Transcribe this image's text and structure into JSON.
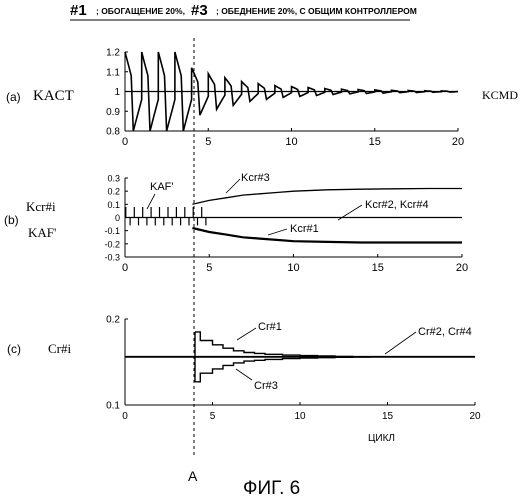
{
  "header": {
    "tag1": "#1",
    "text1": "; ОБОГАЩЕНИЕ 20%,",
    "tag2": "#3",
    "text2": "; ОБЕДНЕНИЕ 20%, С ОБЩИМ КОНТРОЛЛЕРОМ"
  },
  "figure_label": "ФИГ. 6",
  "marker": "A",
  "chart_data": [
    {
      "type": "line",
      "panel": "(a)",
      "ylabel": "KACT",
      "series": [
        {
          "name": "KACT",
          "label": "",
          "style": "heavy-oscillation",
          "amplitude": [
            0.2,
            0.2,
            0.2,
            0.2,
            0.12,
            0.09,
            0.07,
            0.05,
            0.04,
            0.03,
            0.025,
            0.02,
            0.015,
            0.012,
            0.01,
            0.008,
            0.006,
            0.005,
            0.004,
            0.003,
            0.002
          ]
        },
        {
          "name": "KCMD",
          "label": "KCMD",
          "value": 1.0
        }
      ],
      "xlim": [
        0,
        20
      ],
      "ylim": [
        0.8,
        1.2
      ],
      "xticks": [
        "0",
        "5",
        "10",
        "15",
        "20"
      ],
      "yticks": [
        "0.8",
        "0.9",
        "1",
        "1.1",
        "1.2"
      ]
    },
    {
      "type": "line",
      "panel": "(b)",
      "ylabel": "Kcr#i",
      "ylabel2": "KAF'",
      "series": [
        {
          "name": "KAF'",
          "label": "KAF'",
          "spike_cycles": [
            0,
            1,
            2,
            3,
            4
          ]
        },
        {
          "name": "Kcr#3",
          "label": "Kcr#3",
          "x": [
            4,
            5,
            6,
            7,
            8,
            9,
            10,
            12,
            14,
            16,
            18,
            20
          ],
          "y": [
            0.1,
            0.13,
            0.15,
            0.17,
            0.18,
            0.19,
            0.2,
            0.21,
            0.215,
            0.218,
            0.22,
            0.22
          ]
        },
        {
          "name": "Kcr#2, Kcr#4",
          "label": "Kcr#2, Kcr#4",
          "value": 0
        },
        {
          "name": "Kcr#1",
          "label": "Kcr#1",
          "x": [
            4,
            5,
            6,
            7,
            8,
            9,
            10,
            12,
            14,
            16,
            18,
            20
          ],
          "y": [
            -0.08,
            -0.11,
            -0.13,
            -0.15,
            -0.16,
            -0.17,
            -0.18,
            -0.185,
            -0.19,
            -0.19,
            -0.19,
            -0.19
          ]
        }
      ],
      "xlim": [
        0,
        20
      ],
      "ylim": [
        -0.3,
        0.3
      ],
      "xticks": [
        "0",
        "5",
        "10",
        "15",
        "20"
      ],
      "yticks": [
        "0.3",
        "0.2",
        "0.1",
        "0",
        "-0.1",
        "-0.2",
        "-0.3"
      ]
    },
    {
      "type": "line",
      "panel": "(c)",
      "ylabel": "Cr#i",
      "xlabel": "ЦИКЛ",
      "series": [
        {
          "name": "Cr#1",
          "label": "Cr#1",
          "x": [
            4,
            4.3,
            5,
            5.6,
            6.2,
            6.8,
            7.4,
            8,
            9,
            10,
            11,
            12,
            13,
            14
          ],
          "y": [
            0.185,
            0.175,
            0.17,
            0.166,
            0.163,
            0.161,
            0.16,
            0.159,
            0.158,
            0.1575,
            0.157,
            0.1565,
            0.1562,
            0.156
          ]
        },
        {
          "name": "Cr#2, Cr#4",
          "label": "Cr#2, Cr#4",
          "value": 0.156
        },
        {
          "name": "Cr#3",
          "label": "Cr#3",
          "x": [
            4,
            4.3,
            5,
            5.6,
            6.2,
            6.8,
            7.4,
            8,
            9,
            10,
            11,
            12,
            13,
            14
          ],
          "y": [
            0.127,
            0.137,
            0.142,
            0.146,
            0.149,
            0.151,
            0.152,
            0.153,
            0.154,
            0.1545,
            0.155,
            0.1555,
            0.1558,
            0.156
          ]
        }
      ],
      "xlim": [
        0,
        20
      ],
      "ylim": [
        0.1,
        0.2
      ],
      "xticks": [
        "0",
        "5",
        "10",
        "15",
        "20"
      ],
      "yticks": [
        "0.2",
        "0.1"
      ]
    }
  ]
}
